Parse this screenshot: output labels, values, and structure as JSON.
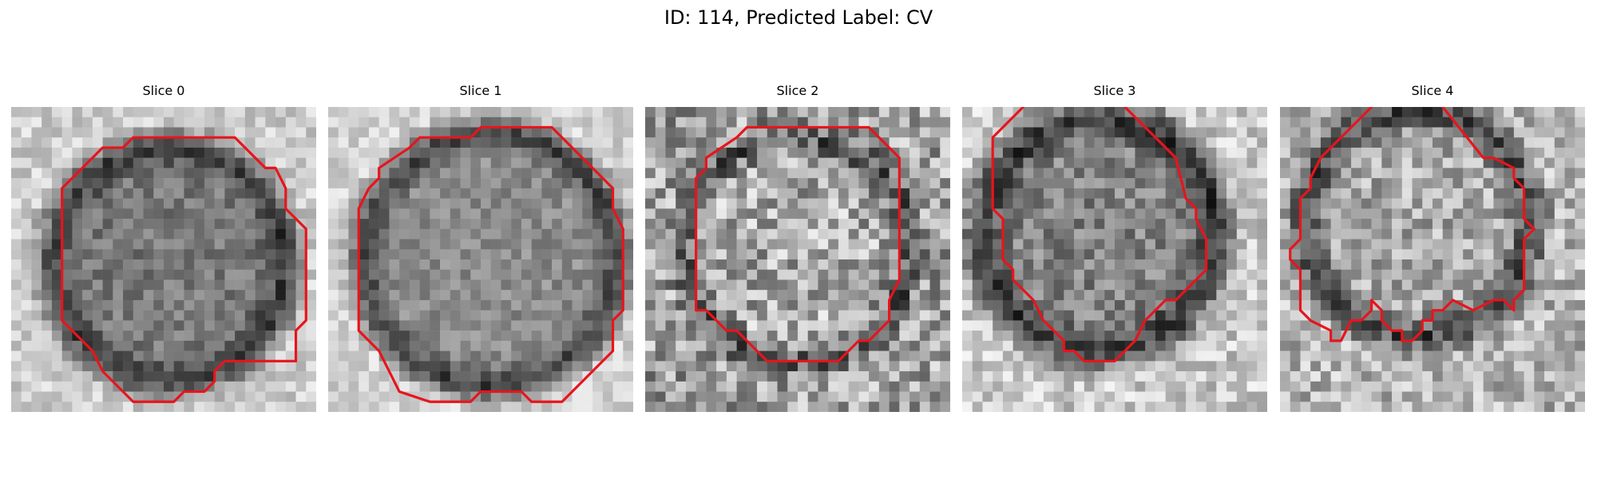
{
  "figure": {
    "title": "ID: 114, Predicted Label: CV"
  },
  "panels": [
    {
      "title": "Slice 0"
    },
    {
      "title": "Slice 1"
    },
    {
      "title": "Slice 2"
    },
    {
      "title": "Slice 3"
    },
    {
      "title": "Slice 4"
    }
  ],
  "colors": {
    "contour": "#e8141c",
    "background": "#ffffff"
  }
}
